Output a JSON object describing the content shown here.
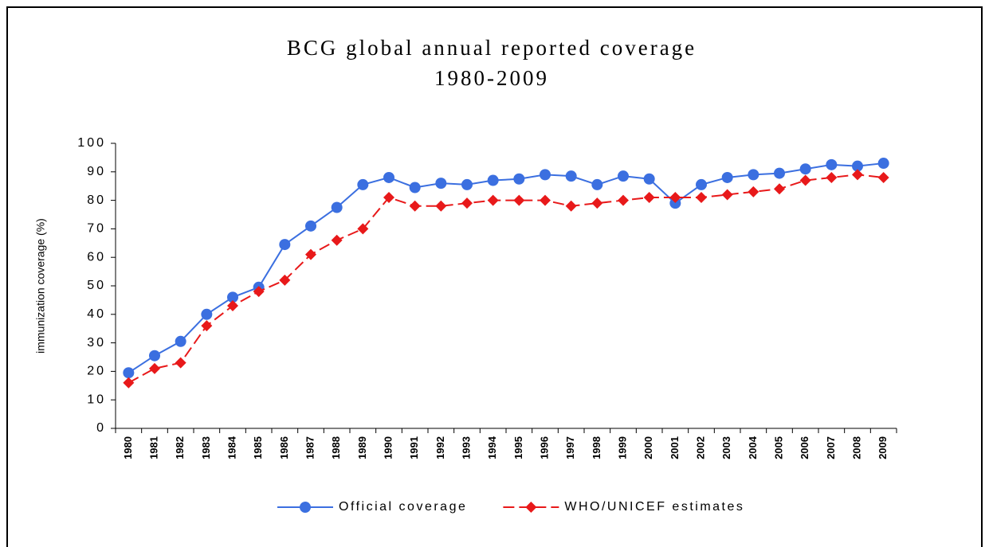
{
  "chart_data": {
    "type": "line",
    "title": [
      "BCG global annual reported coverage",
      "1980-2009"
    ],
    "y_label": "immunization coverage (%)",
    "categories": [
      "1980",
      "1981",
      "1982",
      "1983",
      "1984",
      "1985",
      "1986",
      "1987",
      "1988",
      "1989",
      "1990",
      "1991",
      "1992",
      "1993",
      "1994",
      "1995",
      "1996",
      "1997",
      "1998",
      "1999",
      "2000",
      "2001",
      "2002",
      "2003",
      "2004",
      "2005",
      "2006",
      "2007",
      "2008",
      "2009"
    ],
    "series": [
      {
        "name": "Official coverage",
        "color": "#3b6fe0",
        "marker": "circle",
        "dashed": false,
        "values": [
          19.5,
          25.5,
          30.5,
          40,
          46,
          49.5,
          64.5,
          71,
          77.5,
          85.5,
          88,
          84.5,
          86,
          85.5,
          87,
          87.5,
          89,
          88.5,
          85.5,
          88.5,
          87.5,
          79,
          85.5,
          88,
          89,
          89.5,
          91,
          92.5,
          92,
          93
        ]
      },
      {
        "name": "WHO/UNICEF estimates",
        "color": "#e8191a",
        "marker": "diamond",
        "dashed": true,
        "values": [
          16,
          21,
          23,
          36,
          43,
          48,
          52,
          61,
          66,
          70,
          81,
          78,
          78,
          79,
          80,
          80,
          80,
          78,
          79,
          80,
          81,
          81,
          81,
          82,
          83,
          84,
          87,
          88,
          89,
          88
        ]
      }
    ],
    "ylim": [
      0,
      100
    ],
    "yticks": [
      0,
      10,
      20,
      30,
      40,
      50,
      60,
      70,
      80,
      90,
      100
    ]
  }
}
